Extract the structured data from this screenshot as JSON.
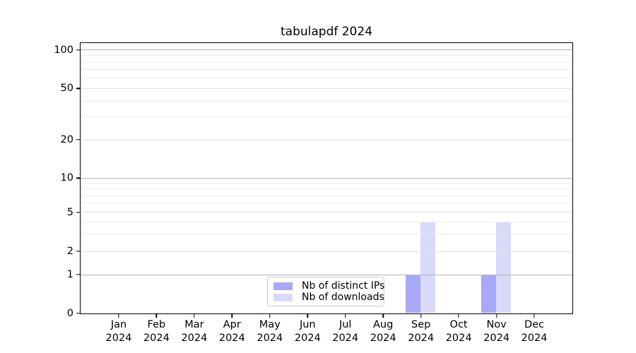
{
  "chart_data": {
    "type": "bar",
    "title": "tabulapdf 2024",
    "categories": [
      "Jan",
      "Feb",
      "Mar",
      "Apr",
      "May",
      "Jun",
      "Jul",
      "Aug",
      "Sep",
      "Oct",
      "Nov",
      "Dec"
    ],
    "category_year": "2024",
    "series": [
      {
        "name": "Nb of distinct IPs",
        "color": "#a8a8f8",
        "values": [
          0,
          0,
          0,
          0,
          0,
          0,
          0,
          0,
          1,
          0,
          1,
          0
        ]
      },
      {
        "name": "Nb of downloads",
        "color": "#d9d9f9",
        "values": [
          0,
          0,
          0,
          0,
          0,
          0,
          0,
          0,
          4,
          0,
          4,
          0
        ]
      }
    ],
    "yticks": [
      0,
      1,
      2,
      5,
      10,
      20,
      50,
      100
    ],
    "minor_yticks": [
      3,
      4,
      6,
      7,
      8,
      9,
      30,
      40,
      60,
      70,
      80,
      90
    ],
    "major_grid_yticks": [
      1,
      10,
      100
    ],
    "yscale": "log-like",
    "ylim": [
      0,
      112
    ],
    "xlabel": "",
    "ylabel": "",
    "grid": "horizontal",
    "legend_position": "bottom-center"
  },
  "colors": {
    "background": "#ffffff",
    "axis": "#000000",
    "major_grid": "#b0b0b0",
    "labeled_grid": "#e2e2e2",
    "minor_grid": "#ebebeb",
    "legend_border": "#cccccc",
    "text": "#000000"
  }
}
